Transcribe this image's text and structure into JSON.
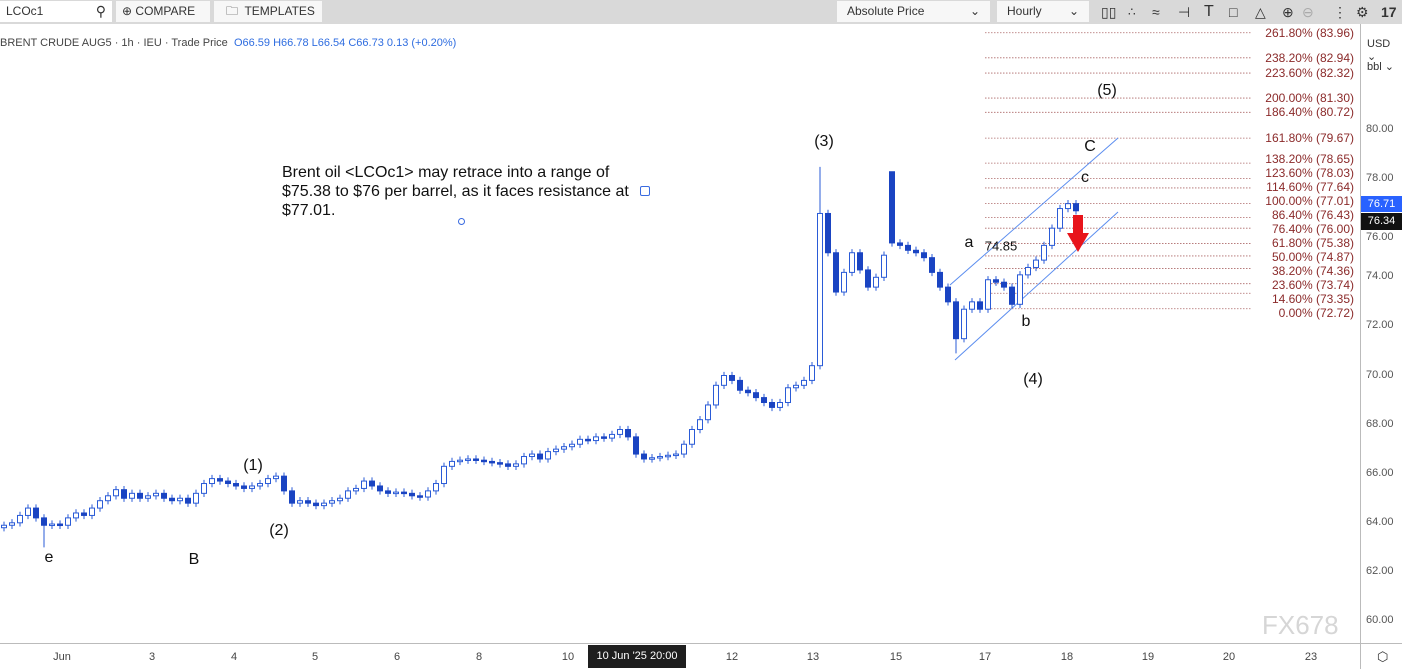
{
  "toolbar": {
    "symbol": "LCOc1",
    "compare_label": "COMPARE",
    "templates_label": "TEMPLATES",
    "price_type": "Absolute Price",
    "interval": "Hourly",
    "icons": [
      "candlestick-icon",
      "indicators-icon",
      "studies-icon",
      "drawing-icon",
      "text-icon",
      "rectangle-icon",
      "polygon-icon",
      "zoom-in-icon",
      "zoom-out-icon",
      "more-icon",
      "settings-icon",
      "tradingview-logo"
    ]
  },
  "legend": {
    "title": "BRENT CRUDE AUG5 · 1h · IEU  · Trade Price",
    "open": "O66.59",
    "high": "H66.78",
    "low": "L66.54",
    "close": "C66.73",
    "change": "0.13 (+0.20%)"
  },
  "currency": "USD",
  "unit": "bbl",
  "annotation": "Brent oil <LCOc1> may retrace into a range of $75.38 to $76 per barrel, as it faces resistance at $77.01.",
  "watermark": "FX678",
  "colors": {
    "up_border": "#2a5bd7",
    "down_fill": "#1a44c2",
    "fib": "#8b2a2a",
    "channel": "#5b8def",
    "arrow": "#e8141b"
  },
  "chart_data": {
    "type": "candlestick",
    "ylim": [
      59,
      85
    ],
    "yticks": [
      "80.00",
      "78.00",
      "76.00",
      "74.00",
      "72.00",
      "70.00",
      "68.00",
      "66.00",
      "64.00",
      "62.00",
      "60.00"
    ],
    "xticks": [
      "Jun",
      "3",
      "4",
      "5",
      "6",
      "8",
      "10",
      "12",
      "13",
      "15",
      "17",
      "18",
      "19",
      "20",
      "23"
    ],
    "crosshair_x_label": "10 Jun '25  20:00",
    "last_price": "76.71",
    "crosshair_price": "76.34",
    "closes": [
      63.9,
      64.0,
      64.3,
      64.6,
      64.2,
      63.9,
      63.95,
      63.9,
      64.2,
      64.4,
      64.3,
      64.6,
      64.9,
      65.1,
      65.35,
      65.0,
      65.2,
      65.0,
      65.1,
      65.2,
      65.0,
      64.9,
      65.0,
      64.8,
      65.2,
      65.6,
      65.8,
      65.7,
      65.6,
      65.5,
      65.4,
      65.5,
      65.6,
      65.8,
      65.9,
      65.3,
      64.8,
      64.9,
      64.8,
      64.7,
      64.8,
      64.9,
      65.0,
      65.3,
      65.4,
      65.7,
      65.5,
      65.3,
      65.2,
      65.25,
      65.2,
      65.1,
      65.05,
      65.3,
      65.6,
      66.3,
      66.5,
      66.55,
      66.6,
      66.55,
      66.5,
      66.45,
      66.4,
      66.3,
      66.4,
      66.7,
      66.8,
      66.6,
      66.9,
      67.0,
      67.1,
      67.2,
      67.4,
      67.35,
      67.5,
      67.45,
      67.6,
      67.8,
      67.5,
      66.8,
      66.6,
      66.65,
      66.7,
      66.75,
      66.8,
      67.2,
      67.8,
      68.2,
      68.8,
      69.6,
      70.0,
      69.8,
      69.4,
      69.3,
      69.1,
      68.9,
      68.7,
      68.9,
      69.5,
      69.6,
      69.8,
      70.4,
      76.6,
      75.0,
      73.4,
      74.2,
      75.0,
      74.3,
      73.6,
      74.0,
      74.9,
      75.4,
      75.3,
      75.1,
      75.0,
      74.8,
      74.2,
      73.6,
      73.0,
      71.5,
      72.7,
      73.0,
      72.7,
      73.9,
      73.8,
      73.6,
      72.9,
      74.1,
      74.4,
      74.7,
      75.3,
      76.0,
      76.8,
      77.0,
      76.71
    ],
    "spikes": [
      {
        "bar": 102,
        "high": 78.5
      },
      {
        "bar": 111,
        "open": 78.3,
        "high": 78.3
      },
      {
        "bar": 119,
        "low": 70.9
      },
      {
        "bar": 5,
        "low": 63.0
      }
    ],
    "fib_levels": [
      {
        "label": "261.80% (83.96)",
        "price": 83.96
      },
      {
        "label": "238.20% (82.94)",
        "price": 82.94
      },
      {
        "label": "223.60% (82.32)",
        "price": 82.32
      },
      {
        "label": "200.00% (81.30)",
        "price": 81.3
      },
      {
        "label": "186.40% (80.72)",
        "price": 80.72
      },
      {
        "label": "161.80% (79.67)",
        "price": 79.67
      },
      {
        "label": "138.20% (78.65)",
        "price": 78.65
      },
      {
        "label": "123.60% (78.03)",
        "price": 78.03
      },
      {
        "label": "114.60% (77.64)",
        "price": 77.64
      },
      {
        "label": "100.00% (77.01)",
        "price": 77.01
      },
      {
        "label": "86.40% (76.43)",
        "price": 76.43
      },
      {
        "label": "76.40% (76.00)",
        "price": 76.0
      },
      {
        "label": "61.80% (75.38)",
        "price": 75.38
      },
      {
        "label": "50.00% (74.87)",
        "price": 74.87
      },
      {
        "label": "38.20% (74.36)",
        "price": 74.36
      },
      {
        "label": "23.60% (73.74)",
        "price": 73.74
      },
      {
        "label": "14.60% (73.35)",
        "price": 73.35
      },
      {
        "label": "0.00% (72.72)",
        "price": 72.72
      }
    ],
    "wave_labels": [
      "(5)",
      "(3)",
      "C",
      "c",
      "a",
      "74.85",
      "b",
      "(4)",
      "(1)",
      "(2)",
      "e",
      "B"
    ]
  }
}
